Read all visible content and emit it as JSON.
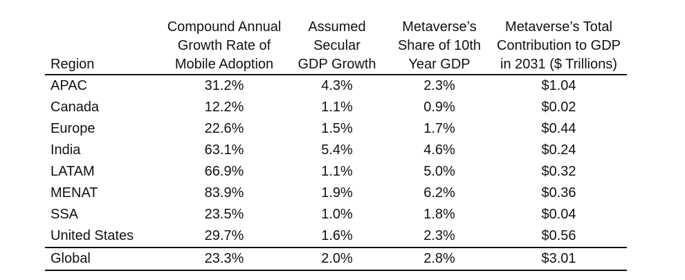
{
  "table": {
    "headers": {
      "region": "Region",
      "cagr": [
        "Compound Annual",
        "Growth Rate of",
        "Mobile Adoption"
      ],
      "gdp_growth": [
        "Assumed",
        "Secular",
        "GDP Growth"
      ],
      "share": [
        "Metaverse’s",
        "Share of 10th",
        "Year GDP"
      ],
      "contribution": [
        "Metaverse’s Total",
        "Contribution to GDP",
        "in 2031 ($ Trillions)"
      ]
    },
    "rows": [
      {
        "region": "APAC",
        "cagr": "31.2%",
        "gdp_growth": "4.3%",
        "share": "2.3%",
        "contribution": "$1.04"
      },
      {
        "region": "Canada",
        "cagr": "12.2%",
        "gdp_growth": "1.1%",
        "share": "0.9%",
        "contribution": "$0.02"
      },
      {
        "region": "Europe",
        "cagr": "22.6%",
        "gdp_growth": "1.5%",
        "share": "1.7%",
        "contribution": "$0.44"
      },
      {
        "region": "India",
        "cagr": "63.1%",
        "gdp_growth": "5.4%",
        "share": "4.6%",
        "contribution": "$0.24"
      },
      {
        "region": "LATAM",
        "cagr": "66.9%",
        "gdp_growth": "1.1%",
        "share": "5.0%",
        "contribution": "$0.32"
      },
      {
        "region": "MENAT",
        "cagr": "83.9%",
        "gdp_growth": "1.9%",
        "share": "6.2%",
        "contribution": "$0.36"
      },
      {
        "region": "SSA",
        "cagr": "23.5%",
        "gdp_growth": "1.0%",
        "share": "1.8%",
        "contribution": "$0.04"
      },
      {
        "region": "United States",
        "cagr": "29.7%",
        "gdp_growth": "1.6%",
        "share": "2.3%",
        "contribution": "$0.56"
      }
    ],
    "total": {
      "region": "Global",
      "cagr": "23.3%",
      "gdp_growth": "2.0%",
      "share": "2.8%",
      "contribution": "$3.01"
    }
  }
}
